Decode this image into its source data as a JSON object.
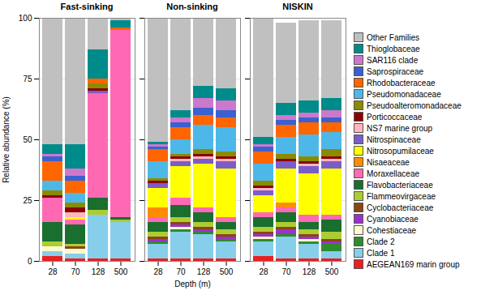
{
  "chart_data": [
    {
      "type": "bar",
      "stacked": true,
      "title": "Fast-sinking",
      "ylabel": "Relative abundance (%)",
      "categories": [
        "28",
        "70",
        "128",
        "500"
      ],
      "ylim": [
        0,
        100
      ],
      "yticks": [
        0,
        25,
        50,
        75,
        100
      ],
      "grid": true,
      "series": [
        {
          "name": "AEGEAN169 marin group",
          "color": "#e82020",
          "values": [
            2,
            1,
            1,
            1
          ]
        },
        {
          "name": "Clade 1",
          "color": "#87ceeb",
          "values": [
            2,
            2,
            18,
            15
          ]
        },
        {
          "name": "Clade 2",
          "color": "#2e8b2e",
          "values": [
            0,
            0,
            0,
            0
          ]
        },
        {
          "name": "Cohestiaceae",
          "color": "#fffacd",
          "values": [
            2,
            2,
            0,
            0
          ]
        },
        {
          "name": "Cyanobiaceae",
          "color": "#9932cc",
          "values": [
            0,
            0,
            0,
            0
          ]
        },
        {
          "name": "Cyclobacteriaceae",
          "color": "#8b4513",
          "values": [
            0,
            1,
            0,
            0
          ]
        },
        {
          "name": "Flammeovirgaceae",
          "color": "#adcc32",
          "values": [
            2,
            1,
            2,
            1
          ]
        },
        {
          "name": "Flavobacteriaceae",
          "color": "#1a6e2e",
          "values": [
            8,
            8,
            5,
            1
          ]
        },
        {
          "name": "Moraxellaceae",
          "color": "#ff69b4",
          "values": [
            10,
            2,
            43,
            77
          ]
        },
        {
          "name": "Nisaeaceae",
          "color": "#ff8c00",
          "values": [
            0,
            0,
            0,
            0
          ]
        },
        {
          "name": "Nitrosopumilaceae",
          "color": "#ffff00",
          "values": [
            0,
            1,
            0,
            0
          ]
        },
        {
          "name": "Nitrospinaceae",
          "color": "#7b5dc8",
          "values": [
            0,
            0,
            1,
            0
          ]
        },
        {
          "name": "NS7 marine group",
          "color": "#ffb6c1",
          "values": [
            0,
            2,
            0,
            0
          ]
        },
        {
          "name": "Porticoccaceae",
          "color": "#8b0000",
          "values": [
            1,
            2,
            1,
            0
          ]
        },
        {
          "name": "Pseudoalteromonadaceae",
          "color": "#8b8b00",
          "values": [
            2,
            2,
            2,
            0
          ]
        },
        {
          "name": "Pseudomonadaceae",
          "color": "#4db8e8",
          "values": [
            4,
            4,
            0,
            0
          ]
        },
        {
          "name": "Rhodobacteraceae",
          "color": "#ff6600",
          "values": [
            8,
            5,
            2,
            1
          ]
        },
        {
          "name": "Saprospiraceae",
          "color": "#3b60d0",
          "values": [
            2,
            2,
            0,
            0
          ]
        },
        {
          "name": "SAR116 clade",
          "color": "#cc78cc",
          "values": [
            1,
            3,
            0,
            0
          ]
        },
        {
          "name": "Thioglobaceae",
          "color": "#008b8b",
          "values": [
            4,
            10,
            12,
            3
          ]
        },
        {
          "name": "Other Families",
          "color": "#c0c0c0",
          "values": [
            52,
            52,
            13,
            1
          ]
        }
      ]
    },
    {
      "type": "bar",
      "stacked": true,
      "title": "Non-sinking",
      "xlabel": "Depth (m)",
      "tick_labels": "x",
      "categories": [
        "28",
        "70",
        "128",
        "500"
      ],
      "ylim": [
        0,
        100
      ],
      "yticks": [
        0,
        25,
        50,
        75,
        100
      ],
      "grid": true,
      "series": [
        {
          "name": "AEGEAN169 marin group",
          "color": "#e82020",
          "values": [
            1,
            1,
            1,
            1
          ]
        },
        {
          "name": "Clade 1",
          "color": "#87ceeb",
          "values": [
            6,
            11,
            10,
            7
          ]
        },
        {
          "name": "Clade 2",
          "color": "#2e8b2e",
          "values": [
            1,
            1,
            1,
            1
          ]
        },
        {
          "name": "Cohestiaceae",
          "color": "#fffacd",
          "values": [
            0,
            1,
            0,
            0
          ]
        },
        {
          "name": "Cyanobiaceae",
          "color": "#9932cc",
          "values": [
            1,
            1,
            1,
            1
          ]
        },
        {
          "name": "Cyclobacteriaceae",
          "color": "#8b4513",
          "values": [
            1,
            1,
            1,
            1
          ]
        },
        {
          "name": "Flammeovirgaceae",
          "color": "#adcc32",
          "values": [
            2,
            2,
            2,
            2
          ]
        },
        {
          "name": "Flavobacteriaceae",
          "color": "#1a6e2e",
          "values": [
            4,
            5,
            4,
            3
          ]
        },
        {
          "name": "Moraxellaceae",
          "color": "#ff69b4",
          "values": [
            2,
            3,
            2,
            2
          ]
        },
        {
          "name": "Nisaeaceae",
          "color": "#ff8c00",
          "values": [
            4,
            0,
            0,
            0
          ]
        },
        {
          "name": "Nitrosopumilaceae",
          "color": "#ffff00",
          "values": [
            8,
            13,
            18,
            20
          ]
        },
        {
          "name": "Nitrospinaceae",
          "color": "#7b5dc8",
          "values": [
            2,
            2,
            2,
            3
          ]
        },
        {
          "name": "NS7 marine group",
          "color": "#ffb6c1",
          "values": [
            0,
            1,
            1,
            1
          ]
        },
        {
          "name": "Porticoccaceae",
          "color": "#8b0000",
          "values": [
            1,
            1,
            1,
            1
          ]
        },
        {
          "name": "Pseudoalteromonadaceae",
          "color": "#8b8b00",
          "values": [
            1,
            1,
            2,
            2
          ]
        },
        {
          "name": "Pseudomonadaceae",
          "color": "#4db8e8",
          "values": [
            7,
            6,
            10,
            10
          ]
        },
        {
          "name": "Rhodobacteraceae",
          "color": "#ff6600",
          "values": [
            5,
            5,
            4,
            4
          ]
        },
        {
          "name": "Saprospiraceae",
          "color": "#3b60d0",
          "values": [
            1,
            2,
            3,
            3
          ]
        },
        {
          "name": "SAR116 clade",
          "color": "#cc78cc",
          "values": [
            1,
            2,
            4,
            4
          ]
        },
        {
          "name": "Thioglobaceae",
          "color": "#008b8b",
          "values": [
            1,
            3,
            5,
            5
          ]
        },
        {
          "name": "Other Families",
          "color": "#c0c0c0",
          "values": [
            51,
            38,
            28,
            29
          ]
        }
      ]
    },
    {
      "type": "bar",
      "stacked": true,
      "title": "NISKIN",
      "tick_labels": "x",
      "legend": "right",
      "categories": [
        "28",
        "70",
        "128",
        "500"
      ],
      "ylim": [
        0,
        100
      ],
      "yticks": [
        0,
        25,
        50,
        75,
        100
      ],
      "grid": true,
      "series": [
        {
          "name": "AEGEAN169 marin group",
          "color": "#e82020",
          "values": [
            2,
            1,
            1,
            1
          ]
        },
        {
          "name": "Clade 1",
          "color": "#87ceeb",
          "values": [
            6,
            9,
            6,
            3
          ]
        },
        {
          "name": "Clade 2",
          "color": "#2e8b2e",
          "values": [
            1,
            1,
            1,
            3
          ]
        },
        {
          "name": "Cohestiaceae",
          "color": "#fffacd",
          "values": [
            1,
            0,
            1,
            0
          ]
        },
        {
          "name": "Cyanobiaceae",
          "color": "#9932cc",
          "values": [
            1,
            2,
            1,
            1
          ]
        },
        {
          "name": "Cyclobacteriaceae",
          "color": "#8b4513",
          "values": [
            1,
            1,
            1,
            1
          ]
        },
        {
          "name": "Flammeovirgaceae",
          "color": "#adcc32",
          "values": [
            2,
            2,
            2,
            3
          ]
        },
        {
          "name": "Flavobacteriaceae",
          "color": "#1a6e2e",
          "values": [
            4,
            4,
            3,
            5
          ]
        },
        {
          "name": "Moraxellaceae",
          "color": "#ff69b4",
          "values": [
            2,
            2,
            3,
            2
          ]
        },
        {
          "name": "Nisaeaceae",
          "color": "#ff8c00",
          "values": [
            0,
            2,
            0,
            0
          ]
        },
        {
          "name": "Nitrosopumilaceae",
          "color": "#ffff00",
          "values": [
            7,
            14,
            17,
            19
          ]
        },
        {
          "name": "Nitrospinaceae",
          "color": "#7b5dc8",
          "values": [
            2,
            3,
            3,
            3
          ]
        },
        {
          "name": "NS7 marine group",
          "color": "#ffb6c1",
          "values": [
            1,
            0,
            1,
            1
          ]
        },
        {
          "name": "Porticoccaceae",
          "color": "#8b0000",
          "values": [
            1,
            1,
            1,
            1
          ]
        },
        {
          "name": "Pseudoalteromonadaceae",
          "color": "#8b8b00",
          "values": [
            2,
            2,
            2,
            3
          ]
        },
        {
          "name": "Pseudomonadaceae",
          "color": "#4db8e8",
          "values": [
            7,
            7,
            9,
            7
          ]
        },
        {
          "name": "Rhodobacteraceae",
          "color": "#ff6600",
          "values": [
            5,
            5,
            5,
            4
          ]
        },
        {
          "name": "Saprospiraceae",
          "color": "#3b60d0",
          "values": [
            2,
            2,
            2,
            2
          ]
        },
        {
          "name": "SAR116 clade",
          "color": "#cc78cc",
          "values": [
            1,
            2,
            2,
            3
          ]
        },
        {
          "name": "Thioglobaceae",
          "color": "#008b8b",
          "values": [
            3,
            5,
            5,
            5
          ]
        },
        {
          "name": "Other Families",
          "color": "#c0c0c0",
          "values": [
            49,
            33,
            33,
            32
          ]
        }
      ]
    }
  ]
}
